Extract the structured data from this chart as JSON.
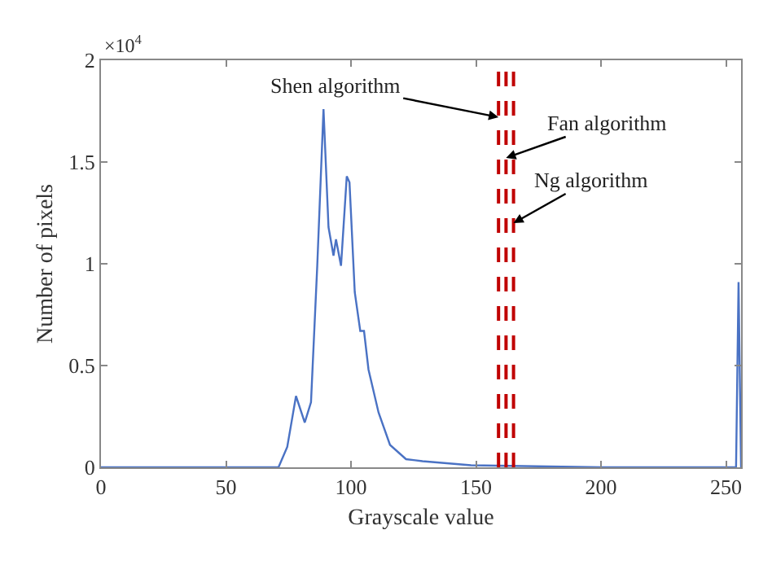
{
  "chart_data": {
    "type": "line",
    "xlabel": "Grayscale value",
    "ylabel": "Number of pixels",
    "x": [
      0,
      71,
      74.5,
      78,
      81.5,
      84,
      86.5,
      89,
      91,
      93,
      94,
      96,
      98.3,
      99.4,
      101.5,
      103.7,
      105.2,
      107,
      111,
      115.6,
      122,
      128.6,
      148,
      200,
      254,
      255,
      256
    ],
    "series": [
      {
        "color": "#4a72c4",
        "values": [
          0,
          0,
          0.1,
          0.35,
          0.22,
          0.32,
          0.99,
          1.76,
          1.18,
          1.04,
          1.12,
          0.99,
          1.43,
          1.4,
          0.86,
          0.67,
          0.67,
          0.48,
          0.27,
          0.11,
          0.04,
          0.03,
          0.01,
          0,
          0,
          0.91,
          0
        ]
      }
    ],
    "xlim": [
      0,
      256
    ],
    "xticks": [
      0,
      50,
      100,
      150,
      200,
      250
    ],
    "ylim": [
      0,
      2
    ],
    "yticks": [
      0,
      0.5,
      1,
      1.5,
      2
    ],
    "ref_lines": [
      {
        "axis": "x",
        "value": 159,
        "color": "#c00000",
        "line_style": "dashed"
      },
      {
        "axis": "x",
        "value": 162,
        "color": "#c00000",
        "line_style": "dashed"
      },
      {
        "axis": "x",
        "value": 165,
        "color": "#c00000",
        "line_style": "dashed"
      }
    ],
    "annotations": [
      {
        "text": "Shen algorithm",
        "x": 159,
        "y": 1.72
      },
      {
        "text": "Fan algorithm",
        "x": 162,
        "y": 1.52
      },
      {
        "text": "Ng algorithm",
        "x": 165,
        "y": 1.2
      },
      "×10$^{4}$"
    ],
    "legend": false,
    "marker": "none",
    "line_style": "solid"
  }
}
